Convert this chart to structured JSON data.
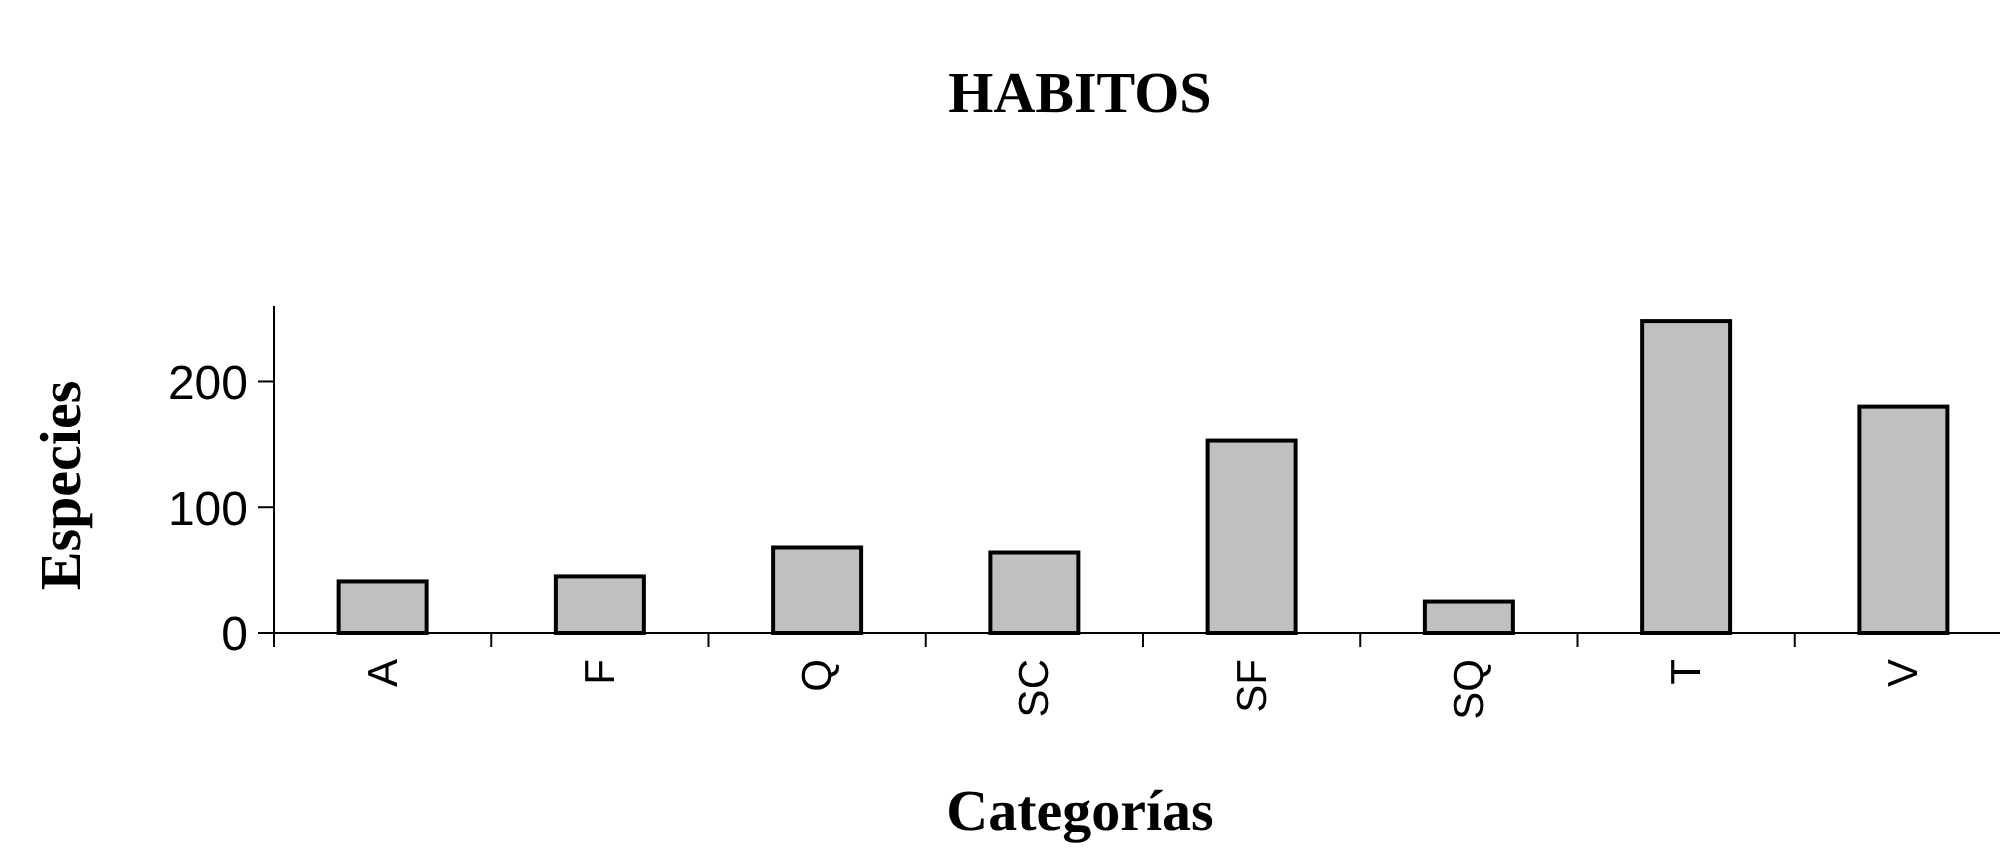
{
  "chart_data": {
    "type": "bar",
    "title": "HABITOS",
    "xlabel": "Categorías",
    "ylabel": "Especies",
    "categories": [
      "A",
      "F",
      "Q",
      "SC",
      "SF",
      "SQ",
      "T",
      "V"
    ],
    "values": [
      41,
      45,
      68,
      64,
      153,
      25,
      248,
      180
    ],
    "color": "#c0c0c0",
    "ylim": [
      0,
      260
    ],
    "yticks": [
      0,
      100,
      200
    ]
  }
}
